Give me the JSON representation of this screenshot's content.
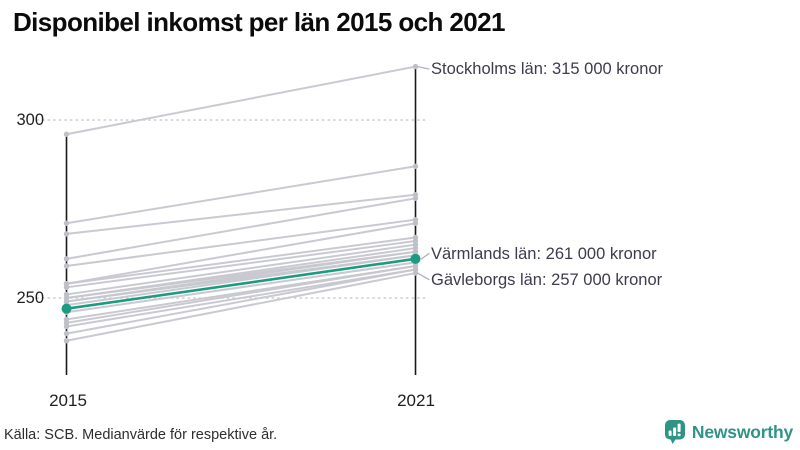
{
  "title": "Disponibel inkomst per län 2015 och 2021",
  "footer": {
    "source": "Källa: SCB. Medianvärde för respektive år.",
    "brand": "Newsworthy"
  },
  "colors": {
    "highlight_teal": "#1d9a82",
    "line_gray": "#c7c7cf",
    "endpoint_gray": "#bfbfca",
    "axis_black": "#1a1a1a",
    "grid_gray": "#cccccc",
    "leader_gray": "#b3b3bc",
    "annotation_text": "#3c3c4e",
    "brand_teal": "#2f9486"
  },
  "chart_data": {
    "type": "line",
    "subtype": "slopegraph",
    "title": "Disponibel inkomst per län 2015 och 2021",
    "x_labels": [
      "2015",
      "2021"
    ],
    "yticks": [
      300,
      250
    ],
    "ylim": [
      228,
      318
    ],
    "grid": "dotted horizontal lines at yticks",
    "legend": "none",
    "unit_hint": "tusental kronor (annotations show full kronor)",
    "series": [
      {
        "name": "Stockholms län",
        "values": [
          296,
          315
        ],
        "color": "gray"
      },
      {
        "values": [
          271,
          287
        ],
        "color": "gray"
      },
      {
        "values": [
          268,
          279
        ],
        "color": "gray"
      },
      {
        "values": [
          261,
          278
        ],
        "color": "gray"
      },
      {
        "values": [
          259,
          272
        ],
        "color": "gray"
      },
      {
        "values": [
          254,
          271
        ],
        "color": "gray"
      },
      {
        "values": [
          254,
          267
        ],
        "color": "gray"
      },
      {
        "values": [
          253,
          266
        ],
        "color": "gray"
      },
      {
        "values": [
          251,
          265
        ],
        "color": "gray"
      },
      {
        "values": [
          250,
          264
        ],
        "color": "gray"
      },
      {
        "values": [
          250,
          263
        ],
        "color": "gray"
      },
      {
        "values": [
          249,
          263
        ],
        "color": "gray"
      },
      {
        "values": [
          249,
          262
        ],
        "color": "gray"
      },
      {
        "values": [
          248,
          262
        ],
        "color": "gray"
      },
      {
        "name": "Värmlands län",
        "values": [
          247,
          261
        ],
        "color": "teal",
        "highlight": true
      },
      {
        "values": [
          246,
          260
        ],
        "color": "gray"
      },
      {
        "values": [
          244,
          259
        ],
        "color": "gray"
      },
      {
        "values": [
          243,
          259
        ],
        "color": "gray"
      },
      {
        "values": [
          242,
          258
        ],
        "color": "gray"
      },
      {
        "values": [
          240,
          258
        ],
        "color": "gray"
      },
      {
        "name": "Gävleborgs län",
        "values": [
          238,
          257
        ],
        "color": "gray"
      }
    ],
    "annotations": [
      {
        "text": "Stockholms län: 315 000 kronor",
        "series": "Stockholms län",
        "value_2021": 315
      },
      {
        "text": "Värmlands län: 261 000 kronor",
        "series": "Värmlands län",
        "value_2021": 261
      },
      {
        "text": "Gävleborgs län: 257 000 kronor",
        "series": "Gävleborgs län",
        "value_2021": 257
      }
    ]
  }
}
